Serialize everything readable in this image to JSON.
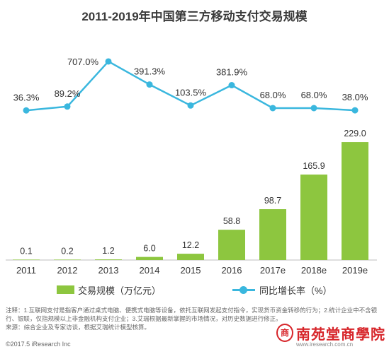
{
  "title": "2011-2019年中国第三方移动支付交易规模",
  "chart_data": {
    "type": "bar",
    "title": "2011-2019年中国第三方移动支付交易规模",
    "xlabel": "",
    "ylabel": "",
    "categories": [
      "2011",
      "2012",
      "2013",
      "2014",
      "2015",
      "2016",
      "2017e",
      "2018e",
      "2019e"
    ],
    "series": [
      {
        "name": "交易规模（万亿元）",
        "type": "bar",
        "values": [
          0.1,
          0.2,
          1.2,
          6.0,
          12.2,
          58.8,
          98.7,
          165.9,
          229.0
        ],
        "color": "#8dc63f"
      },
      {
        "name": "同比增长率（%）",
        "type": "line",
        "values": [
          36.3,
          89.2,
          707.0,
          391.3,
          103.5,
          381.9,
          68.0,
          68.0,
          38.0
        ],
        "color": "#3ab7de"
      }
    ],
    "grid": false,
    "legend_position": "bottom"
  },
  "notes": {
    "comment": "注释：1.互联网支付是指客户通过桌式电脑、便携式电脑等设备，依托互联网发起支付指令，实现货币资金转移的行为；2.统计企业中不含银行、银联，仅指规模以上非金融机构支付企业；3.艾瑞根据最新掌握的市场情况，对历史数据进行修正。",
    "source": "来源：综合企业及专家访谈，根据艾瑞统计模型核算。"
  },
  "footer": {
    "copyright": "©2017.5 iResearch Inc",
    "url": "www.iresearch.com.cn"
  },
  "watermark": {
    "seal": "商",
    "text": "南苑堂商學院",
    "color": "#d7262b"
  }
}
